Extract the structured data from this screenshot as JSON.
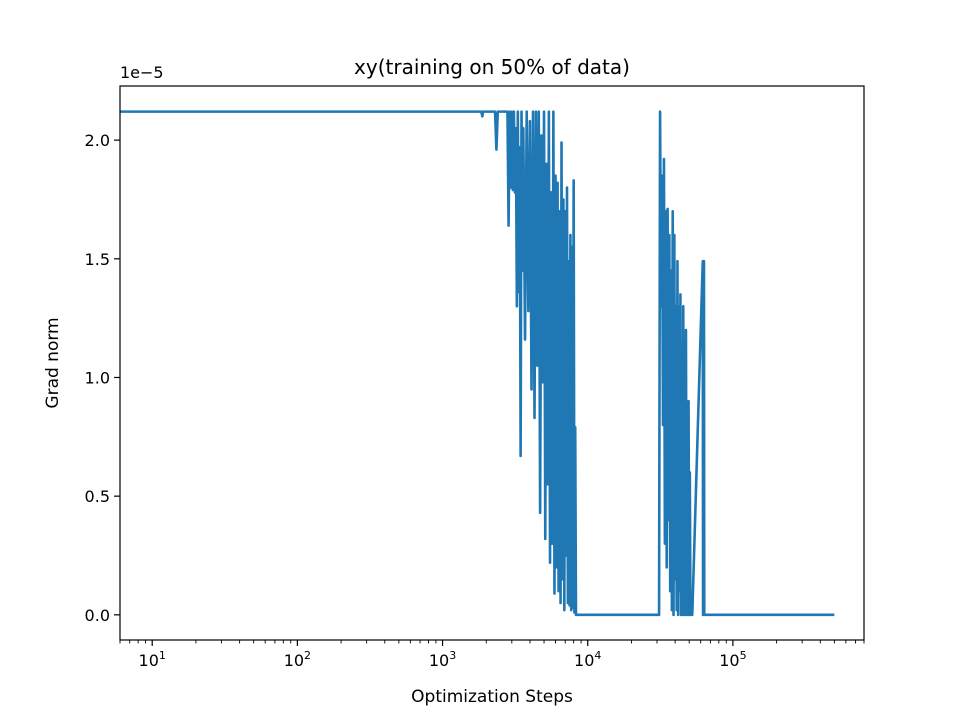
{
  "chart_data": {
    "type": "line",
    "title": "xy(training on 50% of data)",
    "xlabel": "Optimization Steps",
    "ylabel": "Grad norm",
    "y_offset_text": "1e−5",
    "x_scale": "log",
    "xlim": [
      6,
      800000
    ],
    "ylim": [
      -1.06e-06,
      2.228e-05
    ],
    "grid": false,
    "legend": "none",
    "x_ticks": [
      {
        "value": 10,
        "label_base": "10",
        "label_exp": "1"
      },
      {
        "value": 100,
        "label_base": "10",
        "label_exp": "2"
      },
      {
        "value": 1000,
        "label_base": "10",
        "label_exp": "3"
      },
      {
        "value": 10000,
        "label_base": "10",
        "label_exp": "4"
      },
      {
        "value": 100000,
        "label_base": "10",
        "label_exp": "5"
      }
    ],
    "y_ticks": [
      {
        "value": 0.0,
        "label": "0.0"
      },
      {
        "value": 5e-06,
        "label": "0.5"
      },
      {
        "value": 1e-05,
        "label": "1.0"
      },
      {
        "value": 1.5e-05,
        "label": "1.5"
      },
      {
        "value": 2e-05,
        "label": "2.0"
      }
    ],
    "series": [
      {
        "color": "#1f77b4",
        "x": [
          6,
          1850,
          1880,
          1900,
          2300,
          2350,
          2400,
          2800,
          2850,
          2900,
          2950,
          3000,
          3050,
          3100,
          3150,
          3200,
          3250,
          3300,
          3350,
          3400,
          3450,
          3500,
          3550,
          3600,
          3700,
          3800,
          3900,
          4000,
          4100,
          4200,
          4300,
          4400,
          4500,
          4600,
          4700,
          4800,
          4900,
          5000,
          5100,
          5200,
          5300,
          5400,
          5500,
          5600,
          5700,
          5800,
          5900,
          6000,
          6100,
          6200,
          6300,
          6400,
          6500,
          6600,
          6700,
          6800,
          6900,
          7000,
          7100,
          7200,
          7300,
          7400,
          7500,
          7600,
          7700,
          7800,
          7900,
          8000,
          8100,
          8200,
          8300,
          8400,
          8500,
          8600,
          8700,
          8800,
          8900,
          9000,
          31000,
          31500,
          32000,
          32500,
          33000,
          33500,
          34000,
          34500,
          35000,
          35500,
          36000,
          36500,
          37000,
          37500,
          38000,
          38500,
          39000,
          39500,
          40000,
          40500,
          41000,
          41500,
          42000,
          42500,
          43000,
          43500,
          44000,
          44500,
          45000,
          45500,
          46000,
          46500,
          47000,
          47500,
          48000,
          48500,
          49000,
          49500,
          50000,
          50500,
          51000,
          51500,
          52000,
          52500,
          62000,
          62300,
          62600,
          62900,
          63200,
          63500,
          500000
        ],
        "y": [
          2.12e-05,
          2.12e-05,
          2.1e-05,
          2.12e-05,
          2.12e-05,
          1.96e-05,
          2.12e-05,
          2.12e-05,
          1.64e-05,
          2.12e-05,
          1.8e-05,
          2.12e-05,
          1.79e-05,
          2.12e-05,
          1.78e-05,
          2.05e-05,
          1.3e-05,
          2.12e-05,
          1.36e-05,
          1.97e-05,
          6.7e-06,
          2.12e-05,
          1.45e-05,
          2.05e-05,
          1.16e-05,
          2.12e-05,
          1.28e-05,
          2.08e-05,
          9.5e-06,
          2.12e-05,
          8.3e-06,
          2.12e-05,
          1.05e-05,
          2.12e-05,
          4.3e-06,
          2.02e-05,
          9.8e-06,
          2.12e-05,
          3.2e-06,
          1.9e-05,
          5.5e-06,
          2.12e-05,
          2.2e-06,
          1.78e-05,
          3e-06,
          2.12e-05,
          9e-07,
          1.85e-05,
          2e-06,
          1.82e-05,
          1e-06,
          1.7e-05,
          5e-07,
          1.99e-05,
          1.5e-06,
          1.75e-05,
          2e-07,
          1.7e-05,
          2.5e-06,
          1.8e-05,
          5e-07,
          1.49e-05,
          4e-07,
          1.6e-05,
          2e-07,
          1.55e-05,
          3e-07,
          1.83e-05,
          1e-07,
          7.9e-06,
          0.0,
          0.0,
          0.0,
          0.0,
          0.0,
          0.0,
          0.0,
          0.0,
          0.0,
          2.12e-05,
          1.3e-05,
          1.85e-05,
          8e-06,
          1.92e-05,
          3e-06,
          1.7e-05,
          2e-06,
          1.71e-05,
          4e-06,
          1.6e-05,
          1e-06,
          1.45e-05,
          2e-07,
          1.7e-05,
          0.0,
          1.6e-05,
          1.5e-06,
          1.3e-05,
          2e-07,
          1.49e-05,
          0.0,
          1.3e-05,
          1e-06,
          1.35e-05,
          0.0,
          1.1e-05,
          0.0,
          1.3e-05,
          0.0,
          1.05e-05,
          0.0,
          1.2e-05,
          0.0,
          8e-06,
          0.0,
          9e-06,
          0.0,
          6e-06,
          0.0,
          0.0,
          0.0,
          0.0,
          1.49e-05,
          0.0,
          1.49e-05,
          0.0,
          1.49e-05,
          0.0,
          0.0
        ]
      }
    ]
  }
}
